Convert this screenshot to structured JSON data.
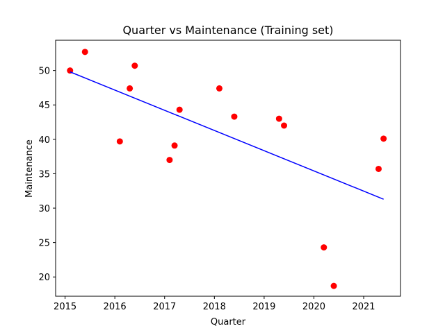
{
  "chart_data": {
    "type": "scatter",
    "title": "Quarter vs Maintenance (Training set)",
    "xlabel": "Quarter",
    "ylabel": "Maintenance",
    "xlim": [
      2014.81,
      2021.74
    ],
    "ylim": [
      17.2,
      54.4
    ],
    "xticks": [
      2015,
      2016,
      2017,
      2018,
      2019,
      2020,
      2021
    ],
    "yticks": [
      20,
      25,
      30,
      35,
      40,
      45,
      50
    ],
    "grid": false,
    "colors": {
      "points": "#ff0000",
      "line": "#0000ff"
    },
    "series": [
      {
        "type": "scatter",
        "x": [
          2015.1,
          2015.4,
          2016.1,
          2016.3,
          2016.4,
          2017.1,
          2017.2,
          2017.3,
          2018.1,
          2018.4,
          2019.3,
          2019.4,
          2020.2,
          2020.4,
          2021.3,
          2021.4
        ],
        "y": [
          50.0,
          52.7,
          39.7,
          47.4,
          50.7,
          37.0,
          39.1,
          44.3,
          47.4,
          43.3,
          43.0,
          42.0,
          24.3,
          18.7,
          35.7,
          40.1
        ]
      },
      {
        "type": "line",
        "x": [
          2015.1,
          2021.4
        ],
        "y": [
          49.8,
          31.3
        ]
      }
    ]
  }
}
